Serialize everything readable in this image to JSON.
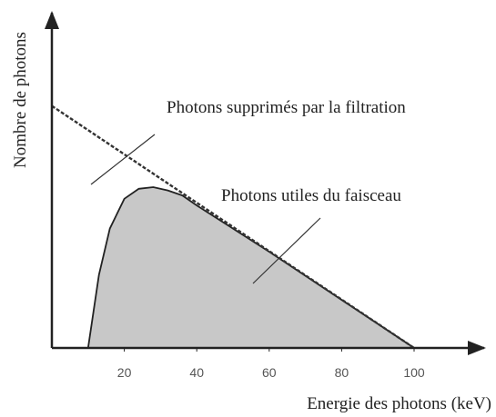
{
  "chart_data": {
    "type": "line",
    "xlabel": "Energie des photons (keV)",
    "ylabel": "Nombre de photons",
    "xlim": [
      0,
      118
    ],
    "ylim": [
      0,
      100
    ],
    "xticks": [
      20,
      40,
      60,
      80,
      100
    ],
    "series": [
      {
        "color": "#333333",
        "style": "dashed",
        "fill": false,
        "x": [
          0,
          100
        ],
        "values": [
          73,
          0
        ]
      },
      {
        "color": "#222222",
        "style": "solid",
        "fill": true,
        "fill_color": "#c8c8c8",
        "x": [
          10,
          13,
          16,
          20,
          24,
          28,
          32,
          36,
          40,
          60,
          80,
          100
        ],
        "values": [
          0,
          22,
          36,
          45,
          48,
          48.5,
          47.5,
          46,
          43,
          29,
          14.5,
          0
        ]
      }
    ],
    "annotations": [
      "Photons supprimés par la filtration",
      "Photons utiles du faisceau"
    ]
  }
}
